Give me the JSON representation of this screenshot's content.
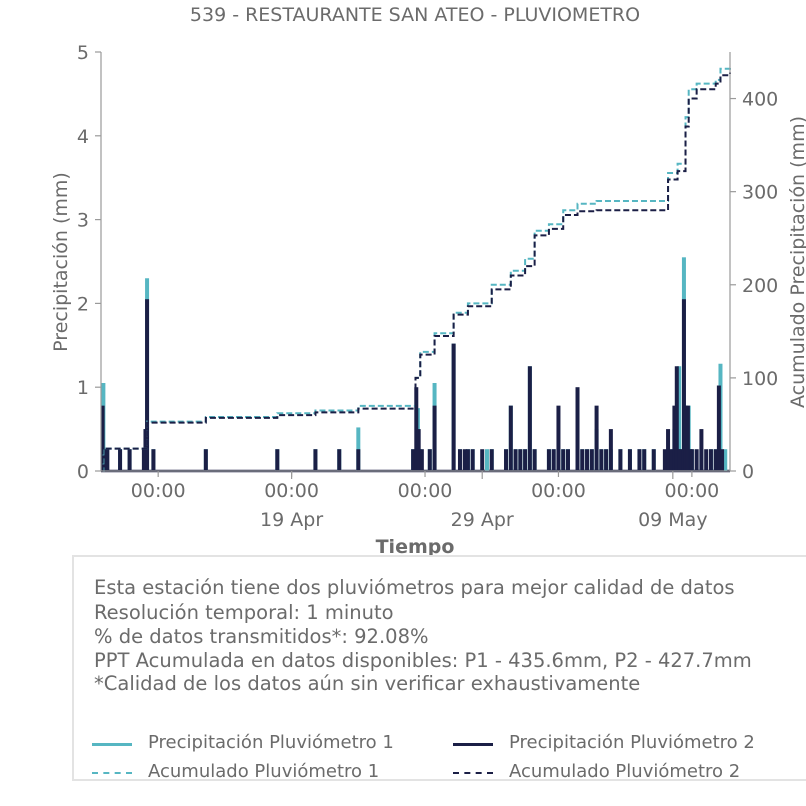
{
  "title": "539 - RESTAURANTE SAN ATEO - PLUVIOMETRO",
  "colors": {
    "p1": "#56b6c2",
    "p2": "#1b1f46",
    "text": "#6b6b6b",
    "axis": "#9a9a9a"
  },
  "info": {
    "lines": [
      "Esta estación tiene dos pluviómetros para mejor calidad de datos",
      "Resolución temporal: 1 minuto",
      "% de datos transmitidos*: 92.08%",
      "PPT Acumulada en datos disponibles: P1 - 435.6mm, P2 - 427.7mm",
      "*Calidad de los datos aún sin verificar exhaustivamente"
    ]
  },
  "legend": [
    {
      "label": "Precipitación Pluviómetro 1",
      "color": "#56b6c2",
      "style": "solid"
    },
    {
      "label": "Precipitación Pluviómetro 2",
      "color": "#1b1f46",
      "style": "solid"
    },
    {
      "label": "Acumulado Pluviómetro 1",
      "color": "#56b6c2",
      "style": "dashed"
    },
    {
      "label": "Acumulado Pluviómetro 2",
      "color": "#1b1f46",
      "style": "dashed"
    }
  ],
  "chart_data": {
    "type": "bar",
    "title": "539 - RESTAURANTE SAN ATEO - PLUVIOMETRO",
    "xlabel": "Tiempo",
    "ylabel": "Precipitación (mm)",
    "y2label": "Acumulado Precipitación (mm)",
    "xlim": [
      "2024-04-09T00:00",
      "2024-05-12T00:00"
    ],
    "ylim": [
      0,
      5
    ],
    "y2lim": [
      0,
      450
    ],
    "yticks": [
      0,
      1,
      2,
      3,
      4,
      5
    ],
    "y2ticks": [
      0,
      100,
      200,
      300,
      400
    ],
    "xticks_major": [
      {
        "x": "2024-04-19T00:00",
        "label": "19 Apr"
      },
      {
        "x": "2024-04-29T00:00",
        "label": "29 Apr"
      },
      {
        "x": "2024-05-09T00:00",
        "label": "09 May"
      }
    ],
    "xticks_minor": [
      {
        "x": "2024-04-12T00:00",
        "label": "00:00"
      },
      {
        "x": "2024-04-19T00:00",
        "label": "00:00"
      },
      {
        "x": "2024-04-26T00:00",
        "label": "00:00"
      },
      {
        "x": "2024-05-03T00:00",
        "label": "00:00"
      },
      {
        "x": "2024-05-10T00:00",
        "label": "00:00"
      }
    ],
    "legend_position": "bottom",
    "series": [
      {
        "name": "Precipitación Pluviómetro 1",
        "kind": "bar",
        "axis": "left",
        "points": [
          [
            "2024-04-09T03:00",
            1.05
          ],
          [
            "2024-04-09T06:00",
            0.26
          ],
          [
            "2024-04-10T00:00",
            0.26
          ],
          [
            "2024-04-10T12:00",
            0.26
          ],
          [
            "2024-04-11T08:00",
            0.5
          ],
          [
            "2024-04-11T10:00",
            2.3
          ],
          [
            "2024-04-11T18:00",
            0.26
          ],
          [
            "2024-04-14T12:00",
            0.26
          ],
          [
            "2024-04-18T06:00",
            0.26
          ],
          [
            "2024-04-20T06:00",
            0.26
          ],
          [
            "2024-04-21T12:00",
            0.26
          ],
          [
            "2024-04-22T12:00",
            0.52
          ],
          [
            "2024-04-25T09:00",
            0.26
          ],
          [
            "2024-04-25T15:00",
            0.75
          ],
          [
            "2024-04-25T18:00",
            0.26
          ],
          [
            "2024-04-26T06:00",
            0.26
          ],
          [
            "2024-04-26T12:00",
            1.05
          ],
          [
            "2024-04-27T12:00",
            1.52
          ],
          [
            "2024-04-27T20:00",
            0.26
          ],
          [
            "2024-04-28T06:00",
            0.26
          ],
          [
            "2024-04-28T12:00",
            0.26
          ],
          [
            "2024-04-29T06:00",
            0.26
          ],
          [
            "2024-04-29T12:00",
            0.26
          ],
          [
            "2024-04-30T06:00",
            0.26
          ],
          [
            "2024-04-30T12:00",
            0.78
          ],
          [
            "2024-04-30T18:00",
            0.26
          ],
          [
            "2024-05-01T00:00",
            0.26
          ],
          [
            "2024-05-01T06:00",
            0.26
          ],
          [
            "2024-05-01T12:00",
            1.25
          ],
          [
            "2024-05-01T18:00",
            0.26
          ],
          [
            "2024-05-02T12:00",
            0.26
          ],
          [
            "2024-05-02T18:00",
            0.26
          ],
          [
            "2024-05-03T00:00",
            0.26
          ],
          [
            "2024-05-03T06:00",
            0.26
          ],
          [
            "2024-05-03T12:00",
            0.26
          ],
          [
            "2024-05-04T00:00",
            0.26
          ],
          [
            "2024-05-04T06:00",
            0.26
          ],
          [
            "2024-05-04T12:00",
            0.26
          ],
          [
            "2024-05-04T18:00",
            0.26
          ],
          [
            "2024-05-05T00:00",
            0.5
          ],
          [
            "2024-05-05T06:00",
            0.26
          ],
          [
            "2024-05-05T12:00",
            0.26
          ],
          [
            "2024-05-05T18:00",
            0.26
          ],
          [
            "2024-05-06T06:00",
            0.26
          ],
          [
            "2024-05-06T18:00",
            0.26
          ],
          [
            "2024-05-07T06:00",
            0.26
          ],
          [
            "2024-05-07T12:00",
            0.26
          ],
          [
            "2024-05-08T00:00",
            0.26
          ],
          [
            "2024-05-09T00:00",
            0.26
          ],
          [
            "2024-05-09T06:00",
            0.26
          ],
          [
            "2024-05-09T12:00",
            0.26
          ],
          [
            "2024-05-09T18:00",
            0.26
          ],
          [
            "2024-05-10T00:00",
            0.26
          ],
          [
            "2024-05-10T12:00",
            0.26
          ],
          [
            "2024-05-11T00:00",
            0.26
          ],
          [
            "2024-05-11T06:00",
            0.26
          ],
          [
            "2024-05-11T12:00",
            1.28
          ],
          [
            "2024-05-11T18:00",
            0.26
          ],
          [
            "2024-05-09T02:00",
            0.5
          ],
          [
            "2024-05-09T05:00",
            0.78
          ],
          [
            "2024-05-09T08:00",
            1.25
          ],
          [
            "2024-05-09T10:00",
            0.26
          ],
          [
            "2024-05-09T14:00",
            2.55
          ],
          [
            "2024-05-09T16:00",
            0.78
          ],
          [
            "2024-05-09T20:00",
            0.78
          ],
          [
            "2024-05-09T22:00",
            0.26
          ]
        ]
      },
      {
        "name": "Precipitación Pluviómetro 2",
        "kind": "bar",
        "axis": "left",
        "points": [
          [
            "2024-04-09T02:00",
            0.78
          ],
          [
            "2024-04-09T05:00",
            0.26
          ],
          [
            "2024-04-09T08:00",
            0.26
          ],
          [
            "2024-04-10T00:00",
            0.26
          ],
          [
            "2024-04-10T12:00",
            0.26
          ],
          [
            "2024-04-11T06:00",
            0.26
          ],
          [
            "2024-04-11T08:00",
            0.5
          ],
          [
            "2024-04-11T10:00",
            2.05
          ],
          [
            "2024-04-11T18:00",
            0.26
          ],
          [
            "2024-04-14T12:00",
            0.26
          ],
          [
            "2024-04-18T06:00",
            0.26
          ],
          [
            "2024-04-20T06:00",
            0.26
          ],
          [
            "2024-04-21T12:00",
            0.26
          ],
          [
            "2024-04-22T12:00",
            0.26
          ],
          [
            "2024-04-25T09:00",
            0.26
          ],
          [
            "2024-04-25T13:00",
            1.0
          ],
          [
            "2024-04-25T16:00",
            0.5
          ],
          [
            "2024-04-25T20:00",
            0.26
          ],
          [
            "2024-04-26T06:00",
            0.26
          ],
          [
            "2024-04-26T12:00",
            0.78
          ],
          [
            "2024-04-27T12:00",
            1.52
          ],
          [
            "2024-04-27T20:00",
            0.26
          ],
          [
            "2024-04-28T02:00",
            0.26
          ],
          [
            "2024-04-28T06:00",
            0.26
          ],
          [
            "2024-04-28T12:00",
            0.26
          ],
          [
            "2024-04-29T00:00",
            0.26
          ],
          [
            "2024-04-29T12:00",
            0.26
          ],
          [
            "2024-04-30T06:00",
            0.26
          ],
          [
            "2024-04-30T12:00",
            0.78
          ],
          [
            "2024-04-30T18:00",
            0.26
          ],
          [
            "2024-05-01T00:00",
            0.26
          ],
          [
            "2024-05-01T06:00",
            0.26
          ],
          [
            "2024-05-01T12:00",
            1.25
          ],
          [
            "2024-05-01T18:00",
            0.26
          ],
          [
            "2024-05-02T12:00",
            0.26
          ],
          [
            "2024-05-02T18:00",
            0.26
          ],
          [
            "2024-05-03T00:00",
            0.78
          ],
          [
            "2024-05-03T06:00",
            0.26
          ],
          [
            "2024-05-03T12:00",
            0.26
          ],
          [
            "2024-05-04T00:00",
            1.0
          ],
          [
            "2024-05-04T06:00",
            0.26
          ],
          [
            "2024-05-04T12:00",
            0.26
          ],
          [
            "2024-05-04T18:00",
            0.26
          ],
          [
            "2024-05-05T00:00",
            0.78
          ],
          [
            "2024-05-05T06:00",
            0.26
          ],
          [
            "2024-05-05T12:00",
            0.26
          ],
          [
            "2024-05-05T18:00",
            0.5
          ],
          [
            "2024-05-06T06:00",
            0.26
          ],
          [
            "2024-05-06T18:00",
            0.26
          ],
          [
            "2024-05-07T06:00",
            0.26
          ],
          [
            "2024-05-07T12:00",
            0.26
          ],
          [
            "2024-05-08T00:00",
            0.26
          ],
          [
            "2024-05-08T14:00",
            0.26
          ],
          [
            "2024-05-08T18:00",
            0.5
          ],
          [
            "2024-05-08T22:00",
            0.26
          ],
          [
            "2024-05-09T02:00",
            0.78
          ],
          [
            "2024-05-09T05:00",
            1.25
          ],
          [
            "2024-05-09T08:00",
            0.26
          ],
          [
            "2024-05-09T10:00",
            0.26
          ],
          [
            "2024-05-09T14:00",
            2.05
          ],
          [
            "2024-05-09T16:00",
            0.78
          ],
          [
            "2024-05-09T19:00",
            0.78
          ],
          [
            "2024-05-09T22:00",
            0.26
          ],
          [
            "2024-05-10T00:00",
            0.26
          ],
          [
            "2024-05-10T06:00",
            0.26
          ],
          [
            "2024-05-10T12:00",
            0.5
          ],
          [
            "2024-05-10T18:00",
            0.26
          ],
          [
            "2024-05-11T00:00",
            0.26
          ],
          [
            "2024-05-11T06:00",
            0.26
          ],
          [
            "2024-05-11T10:00",
            1.02
          ],
          [
            "2024-05-11T14:00",
            0.26
          ]
        ]
      },
      {
        "name": "Acumulado Pluviómetro 1",
        "kind": "step",
        "axis": "right",
        "points": [
          [
            "2024-04-09T00:00",
            0
          ],
          [
            "2024-04-09T03:00",
            24
          ],
          [
            "2024-04-11T10:00",
            53
          ],
          [
            "2024-04-14T12:00",
            58
          ],
          [
            "2024-04-18T06:00",
            62
          ],
          [
            "2024-04-20T06:00",
            65
          ],
          [
            "2024-04-22T12:00",
            70
          ],
          [
            "2024-04-25T12:00",
            100
          ],
          [
            "2024-04-25T18:00",
            128
          ],
          [
            "2024-04-26T12:00",
            148
          ],
          [
            "2024-04-27T12:00",
            170
          ],
          [
            "2024-04-28T06:00",
            180
          ],
          [
            "2024-04-29T12:00",
            200
          ],
          [
            "2024-04-30T12:00",
            215
          ],
          [
            "2024-05-01T06:00",
            228
          ],
          [
            "2024-05-01T18:00",
            258
          ],
          [
            "2024-05-02T12:00",
            265
          ],
          [
            "2024-05-03T06:00",
            280
          ],
          [
            "2024-05-04T00:00",
            287
          ],
          [
            "2024-05-05T00:00",
            290
          ],
          [
            "2024-05-08T18:00",
            320
          ],
          [
            "2024-05-09T06:00",
            330
          ],
          [
            "2024-05-09T16:00",
            380
          ],
          [
            "2024-05-09T20:00",
            410
          ],
          [
            "2024-05-10T06:00",
            416
          ],
          [
            "2024-05-11T06:00",
            420
          ],
          [
            "2024-05-11T12:00",
            432
          ],
          [
            "2024-05-12T00:00",
            436
          ]
        ]
      },
      {
        "name": "Acumulado Pluviómetro 2",
        "kind": "step",
        "axis": "right",
        "points": [
          [
            "2024-04-09T00:00",
            0
          ],
          [
            "2024-04-09T02:00",
            24
          ],
          [
            "2024-04-11T10:00",
            52
          ],
          [
            "2024-04-14T12:00",
            57
          ],
          [
            "2024-04-18T06:00",
            60
          ],
          [
            "2024-04-20T06:00",
            63
          ],
          [
            "2024-04-22T12:00",
            67
          ],
          [
            "2024-04-25T12:00",
            100
          ],
          [
            "2024-04-25T18:00",
            125
          ],
          [
            "2024-04-26T12:00",
            145
          ],
          [
            "2024-04-27T12:00",
            168
          ],
          [
            "2024-04-28T06:00",
            177
          ],
          [
            "2024-04-29T12:00",
            195
          ],
          [
            "2024-04-30T12:00",
            210
          ],
          [
            "2024-05-01T06:00",
            220
          ],
          [
            "2024-05-01T18:00",
            253
          ],
          [
            "2024-05-02T12:00",
            260
          ],
          [
            "2024-05-03T06:00",
            275
          ],
          [
            "2024-05-04T00:00",
            279
          ],
          [
            "2024-05-05T00:00",
            280
          ],
          [
            "2024-05-08T18:00",
            313
          ],
          [
            "2024-05-09T06:00",
            322
          ],
          [
            "2024-05-09T16:00",
            370
          ],
          [
            "2024-05-09T20:00",
            400
          ],
          [
            "2024-05-10T06:00",
            410
          ],
          [
            "2024-05-11T06:00",
            416
          ],
          [
            "2024-05-11T12:00",
            425
          ],
          [
            "2024-05-12T00:00",
            428
          ]
        ]
      }
    ]
  }
}
